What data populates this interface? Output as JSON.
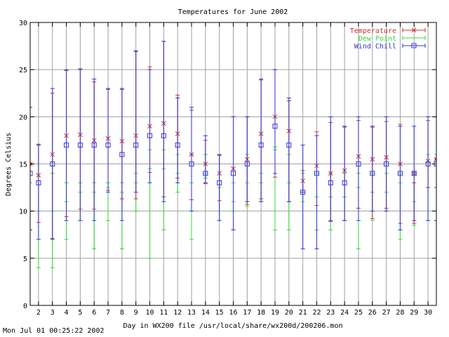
{
  "footer_timestamp": "Mon Jul 01 00:25:22 2002",
  "colors": {
    "temperature": "#cc3333",
    "dew_point": "#33dd33",
    "wind_chill": "#3333dd",
    "grid": "#a0a0a0",
    "axis": "#000000"
  },
  "chart_data": {
    "type": "error-bar",
    "title": "Temperatures for June 2002",
    "xlabel": "Day in WX200 file /usr/local/share/wx200d/200206.mon",
    "ylabel": "Degrees Celsius",
    "xlim": [
      1.4,
      30.6
    ],
    "ylim": [
      0,
      30
    ],
    "xticks": [
      2,
      3,
      4,
      5,
      6,
      7,
      8,
      9,
      10,
      11,
      12,
      13,
      14,
      15,
      16,
      17,
      18,
      19,
      20,
      21,
      22,
      23,
      24,
      25,
      26,
      27,
      28,
      29,
      30
    ],
    "yticks": [
      0,
      5,
      10,
      15,
      20,
      25,
      30
    ],
    "grid": true,
    "legend_position": "top-right",
    "series": [
      {
        "name": "Temperature",
        "x": [
          1.4,
          2,
          3,
          4,
          5,
          6,
          7,
          8,
          9,
          10,
          11,
          12,
          13,
          14,
          15,
          16,
          17,
          18,
          19,
          20,
          21,
          22,
          23,
          24,
          25,
          26,
          27,
          28,
          29,
          30,
          30.6
        ],
        "mean": [
          15,
          13.8,
          16,
          18,
          18.1,
          17.5,
          17.7,
          17.4,
          18,
          19,
          19.3,
          18.2,
          16,
          15,
          14,
          14.5,
          15.5,
          18.2,
          20,
          18.5,
          13.2,
          14.8,
          14,
          14.3,
          15.8,
          15.5,
          15.7,
          15,
          14,
          15.3,
          15.5
        ],
        "low": [
          8,
          8.8,
          7.1,
          9.4,
          10.2,
          10.2,
          12.2,
          11.3,
          11.3,
          14.1,
          11.5,
          13.5,
          11.2,
          12.9,
          11.1,
          8,
          10.7,
          11.3,
          13.6,
          11,
          12,
          10.6,
          8.9,
          9,
          10.3,
          9.2,
          10.3,
          8.7,
          8.7,
          12.5,
          12.5
        ],
        "high": [
          21,
          17.1,
          22.5,
          24.9,
          25.1,
          23.7,
          22.9,
          22.9,
          26.9,
          25.3,
          28,
          22.3,
          20.7,
          17.5,
          15.9,
          20,
          20,
          23.9,
          25,
          21.7,
          14.3,
          18.4,
          19.4,
          18.9,
          19.6,
          18.9,
          19.5,
          19.2,
          13,
          19.6,
          20
        ]
      },
      {
        "name": "Dew Point",
        "x": [
          1.4,
          2,
          3,
          4,
          5,
          6,
          7,
          8,
          9,
          10,
          11,
          12,
          13,
          14,
          15,
          16,
          17,
          18,
          19,
          20,
          21,
          22,
          23,
          24,
          25,
          26,
          27,
          28,
          29,
          30,
          30.6
        ],
        "mean": [
          10,
          10,
          10,
          11,
          12,
          12,
          12.5,
          12,
          14,
          14.5,
          14.5,
          14,
          13,
          14,
          12.5,
          13,
          13,
          13,
          16.5,
          13,
          12,
          11.5,
          11.5,
          11.5,
          12.5,
          12,
          12,
          13,
          11,
          12.5,
          12.5
        ],
        "low": [
          5,
          4,
          4,
          7,
          9,
          6,
          9,
          6,
          10,
          5,
          8,
          12,
          7,
          13.5,
          9,
          10,
          10.5,
          11,
          8,
          8,
          11,
          8,
          8,
          9,
          6,
          9,
          10,
          7,
          8.5,
          9,
          9
        ],
        "high": [
          13,
          17,
          14,
          13,
          13,
          13,
          13,
          13,
          13,
          16.5,
          16.5,
          16,
          16,
          16,
          16,
          11,
          16,
          14,
          16.8,
          16,
          14,
          14,
          14,
          14,
          14,
          14,
          14,
          14,
          14,
          16,
          16
        ]
      },
      {
        "name": "Wind Chill",
        "x": [
          1.4,
          2,
          3,
          4,
          5,
          6,
          7,
          8,
          9,
          10,
          11,
          12,
          13,
          14,
          15,
          16,
          17,
          18,
          19,
          20,
          21,
          22,
          23,
          24,
          25,
          26,
          27,
          28,
          29,
          30,
          30.6
        ],
        "mean": [
          14,
          13,
          15,
          17,
          17,
          17,
          17,
          16,
          17,
          18,
          18,
          17,
          15,
          14,
          13,
          14,
          15,
          17,
          19,
          17,
          12,
          14,
          13,
          13,
          15,
          14,
          15,
          14,
          14,
          15,
          15
        ],
        "low": [
          8,
          7,
          7,
          9,
          9,
          9,
          12,
          9,
          12,
          13,
          11,
          13,
          10,
          13,
          9,
          8,
          11,
          11,
          14,
          11,
          6,
          6,
          9,
          9,
          9,
          10,
          10,
          8,
          9,
          9,
          9
        ],
        "high": [
          21,
          17,
          23,
          25,
          25,
          24,
          23,
          23,
          27,
          25,
          28,
          22,
          21,
          18,
          16,
          20,
          20,
          24,
          25,
          22,
          17,
          18,
          20,
          19,
          20,
          19,
          20,
          19,
          19,
          20,
          20
        ]
      }
    ]
  }
}
